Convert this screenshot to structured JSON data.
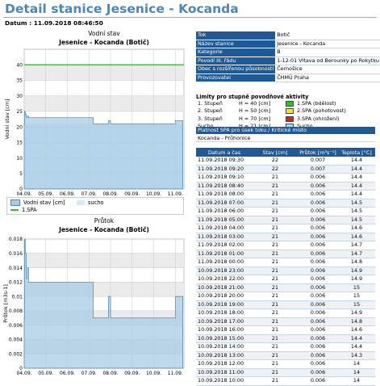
{
  "page": {
    "title": "Detail stanice Jesenice - Kocanda",
    "datum_label": "Datum :",
    "datum_value": "11.09.2018 08:46:50"
  },
  "chart_data": [
    {
      "type": "area",
      "title": "Vodní stav",
      "subtitle": "Jesenice - Kocanda (Botič)",
      "xlabel": "",
      "ylabel": "Vodní stav [cm]",
      "ylim": [
        0,
        45
      ],
      "yticks": [
        0,
        5,
        10,
        15,
        20,
        25,
        30,
        35,
        40
      ],
      "xlim": [
        4.0,
        11.4
      ],
      "xticks": [
        "04.09.",
        "05.09.",
        "06.09.",
        "07.09.",
        "08.09.",
        "09.09.",
        "10.09.",
        "11.09."
      ],
      "grid": true,
      "series": [
        {
          "name": "Vodní stav [cm]",
          "color": "#a8cce4",
          "x": [
            4.0,
            4.02,
            4.05,
            4.1,
            4.15,
            4.2,
            4.6,
            4.8,
            5.0,
            5.2,
            5.6,
            6.0,
            6.8,
            7.1,
            7.2,
            7.4,
            7.6,
            7.9,
            8.0,
            8.3,
            8.6,
            9.0,
            9.4,
            9.9,
            10.3,
            10.7,
            11.0,
            11.35
          ],
          "values": [
            21,
            25,
            24,
            23,
            23.5,
            23,
            23,
            23,
            23,
            23,
            23,
            23,
            23,
            23,
            21,
            21,
            21,
            22,
            21,
            21,
            21,
            21,
            21,
            21,
            21,
            21,
            22,
            22
          ]
        },
        {
          "name": "sucho",
          "color": "#d7e9f6"
        },
        {
          "name": "1.SPA",
          "color": "#33bb33",
          "x": [
            4.0,
            11.4
          ],
          "values": [
            40,
            40
          ]
        }
      ],
      "legend": [
        {
          "label": "Vodní stav [cm]",
          "color": "#a8cce4"
        },
        {
          "label": "sucho",
          "color": "#d7e9f6"
        },
        {
          "label": "1.SPA",
          "color": "#33bb33"
        }
      ]
    },
    {
      "type": "area",
      "title": "Průtok",
      "subtitle": "Jesenice - Kocanda (Botič)",
      "xlabel": "",
      "ylabel": "Průtok [m3s-1]",
      "ylim": [
        0,
        0.018
      ],
      "yticks": [
        0,
        0.002,
        0.004,
        0.006,
        0.008,
        0.01,
        0.012,
        0.014,
        0.016,
        0.018
      ],
      "xlim": [
        4.0,
        11.4
      ],
      "xticks": [
        "04.09.",
        "05.09.",
        "06.09.",
        "07.09.",
        "08.09.",
        "09.09.",
        "10.09.",
        "11.09."
      ],
      "grid": true,
      "series": [
        {
          "name": "Průtok",
          "color": "#a8cce4",
          "x": [
            4.0,
            4.02,
            4.05,
            4.1,
            4.15,
            4.2,
            4.6,
            4.8,
            5.0,
            5.2,
            5.6,
            6.0,
            6.8,
            7.1,
            7.2,
            7.4,
            7.6,
            7.9,
            8.0,
            8.3,
            8.6,
            9.0,
            9.4,
            9.9,
            10.3,
            10.7,
            11.0,
            11.35
          ],
          "values": [
            0.007,
            0.018,
            0.016,
            0.0125,
            0.014,
            0.012,
            0.012,
            0.012,
            0.012,
            0.012,
            0.012,
            0.012,
            0.012,
            0.012,
            0.007,
            0.007,
            0.007,
            0.01,
            0.007,
            0.007,
            0.007,
            0.007,
            0.007,
            0.007,
            0.007,
            0.007,
            0.01,
            0.01
          ]
        }
      ]
    }
  ],
  "info": {
    "rows": [
      {
        "k": "Tok",
        "v": "Botič"
      },
      {
        "k": "Název stanice",
        "v": "Jesenice - Kocanda"
      },
      {
        "k": "Kategorie",
        "v": "B"
      },
      {
        "k": "Povodí III. řádu",
        "v": "1-12-01 Vltava od Berounky po Rokytku"
      },
      {
        "k": "Obec s rozšířenou působností",
        "v": "Černošice"
      },
      {
        "k": "Provozovatel",
        "v": "ČHMÚ Praha"
      }
    ]
  },
  "limits": {
    "heading": "Limity pro stupně povodňové aktivity",
    "rows": [
      {
        "stage": "1. Stupeň",
        "h": "H = 40 [cm]",
        "color": "#33bb33",
        "label": "1.SPA (bdělost)"
      },
      {
        "stage": "2. Stupeň",
        "h": "H = 50 [cm]",
        "color": "#f5e61a",
        "label": "2.SPA (pohotovost)"
      },
      {
        "stage": "3. Stupeň",
        "h": "H = 70 [cm]",
        "color": "#e02020",
        "label": "3.SPA (ohrožení)"
      },
      {
        "stage": "Sucho",
        "h": "H = 21 [cm]",
        "color": "#a9ddf2",
        "label": "Sucho"
      }
    ]
  },
  "spa": {
    "header": "Platnost SPA pro úsek toku / Kritické místo",
    "value": "Kocanda - Průhonice"
  },
  "table": {
    "headers": [
      "Datum a čas",
      "Stav [cm]",
      "Průtok [m³s⁻¹]",
      "Teplota [°C]"
    ],
    "rows": [
      [
        "11.09.2018 09:30",
        "22",
        "0.007",
        "14.4"
      ],
      [
        "11.09.2018 09:20",
        "22",
        "0.007",
        "14.4"
      ],
      [
        "11.09.2018 09:10",
        "21",
        "0.006",
        "14.4"
      ],
      [
        "11.09.2018 08:40",
        "21",
        "0.006",
        "14.4"
      ],
      [
        "11.09.2018 08:00",
        "21",
        "0.006",
        "14.4"
      ],
      [
        "11.09.2018 07:00",
        "21",
        "0.006",
        "14.5"
      ],
      [
        "11.09.2018 06:00",
        "21",
        "0.006",
        "14.5"
      ],
      [
        "11.09.2018 05:00",
        "21",
        "0.006",
        "14.5"
      ],
      [
        "11.09.2018 04:00",
        "21",
        "0.006",
        "14.6"
      ],
      [
        "11.09.2018 03:00",
        "21",
        "0.006",
        "14.6"
      ],
      [
        "11.09.2018 02:00",
        "21",
        "0.006",
        "14.7"
      ],
      [
        "11.09.2018 01:00",
        "21",
        "0.006",
        "14.7"
      ],
      [
        "11.09.2018 00:00",
        "21",
        "0.006",
        "14.8"
      ],
      [
        "10.09.2018 23:00",
        "21",
        "0.006",
        "14.9"
      ],
      [
        "10.09.2018 22:00",
        "21",
        "0.006",
        "14.9"
      ],
      [
        "10.09.2018 21:00",
        "21",
        "0.006",
        "15"
      ],
      [
        "10.09.2018 20:00",
        "21",
        "0.006",
        "15"
      ],
      [
        "10.09.2018 19:00",
        "21",
        "0.006",
        "15"
      ],
      [
        "10.09.2018 18:00",
        "21",
        "0.006",
        "14.9"
      ],
      [
        "10.09.2018 17:00",
        "21",
        "0.006",
        "14.8"
      ],
      [
        "10.09.2018 16:00",
        "21",
        "0.006",
        "14.6"
      ],
      [
        "10.09.2018 15:00",
        "21",
        "0.006",
        "14.4"
      ],
      [
        "10.09.2018 14:00",
        "21",
        "0.006",
        "14.4"
      ],
      [
        "10.09.2018 13:00",
        "21",
        "0.006",
        "14.3"
      ],
      [
        "10.09.2018 12:00",
        "21",
        "0.006",
        "14"
      ],
      [
        "10.09.2018 11:00",
        "21",
        "0.006",
        "14"
      ],
      [
        "10.09.2018 10:00",
        "21",
        "0.006",
        "14"
      ]
    ]
  }
}
